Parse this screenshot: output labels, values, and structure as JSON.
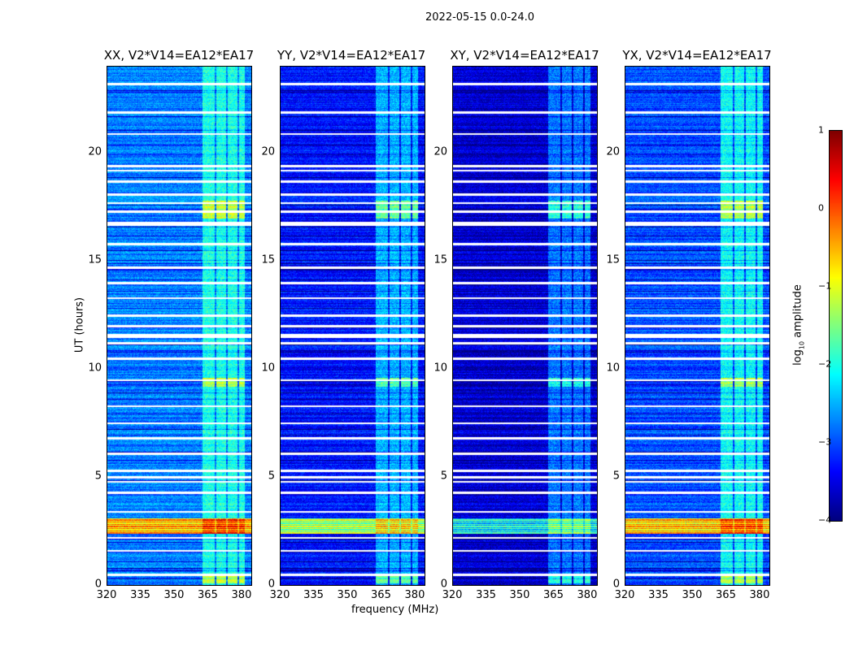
{
  "chart_data": {
    "type": "heatmap",
    "title": "2022-05-15 0.0-24.0",
    "xlabel": "frequency (MHz)",
    "ylabel": "UT (hours)",
    "xlim": [
      320,
      384
    ],
    "ylim": [
      0,
      24
    ],
    "xticks": [
      "320",
      "335",
      "350",
      "365",
      "380"
    ],
    "yticks": [
      "0",
      "5",
      "10",
      "15",
      "20"
    ],
    "colorbar": {
      "label_prefix": "log",
      "label_sub": "10",
      "label_suffix": "amplitude",
      "range": [
        -4,
        1
      ],
      "ticks": [
        "1",
        "0",
        "−1",
        "−2",
        "−3",
        "−4"
      ],
      "colormap": "jet"
    },
    "panels": [
      {
        "title": "XX, V2*V14=EA12*EA17",
        "base_level": -2.75,
        "band_level": -2.0,
        "rfi_level": 0.2
      },
      {
        "title": "YY, V2*V14=EA12*EA17",
        "base_level": -3.3,
        "band_level": -2.5,
        "rfi_level": -0.6
      },
      {
        "title": "XY, V2*V14=EA12*EA17",
        "base_level": -3.6,
        "band_level": -2.8,
        "rfi_level": -1.4
      },
      {
        "title": "YX, V2*V14=EA12*EA17",
        "base_level": -3.0,
        "band_level": -2.1,
        "rfi_level": 0.1
      }
    ],
    "band_mhz": [
      362,
      381
    ],
    "band_gaps_mhz": [
      368,
      373,
      378
    ],
    "rfi_hours": [
      2.4,
      3.1
    ],
    "bright_hours": [
      [
        9.2,
        9.6
      ],
      [
        0.1,
        0.5
      ],
      [
        17.0,
        17.8
      ]
    ],
    "flagged_hours": [
      0.5,
      1.6,
      2.2,
      3.4,
      4.3,
      4.8,
      5.0,
      5.3,
      6.1,
      6.8,
      7.5,
      8.3,
      9.5,
      10.5,
      11.2,
      11.5,
      11.6,
      12.0,
      12.5,
      13.3,
      14.0,
      14.7,
      15.8,
      16.7,
      16.8,
      17.3,
      17.7,
      18.1,
      18.7,
      19.2,
      19.4,
      20.9,
      21.9,
      23.2
    ]
  }
}
